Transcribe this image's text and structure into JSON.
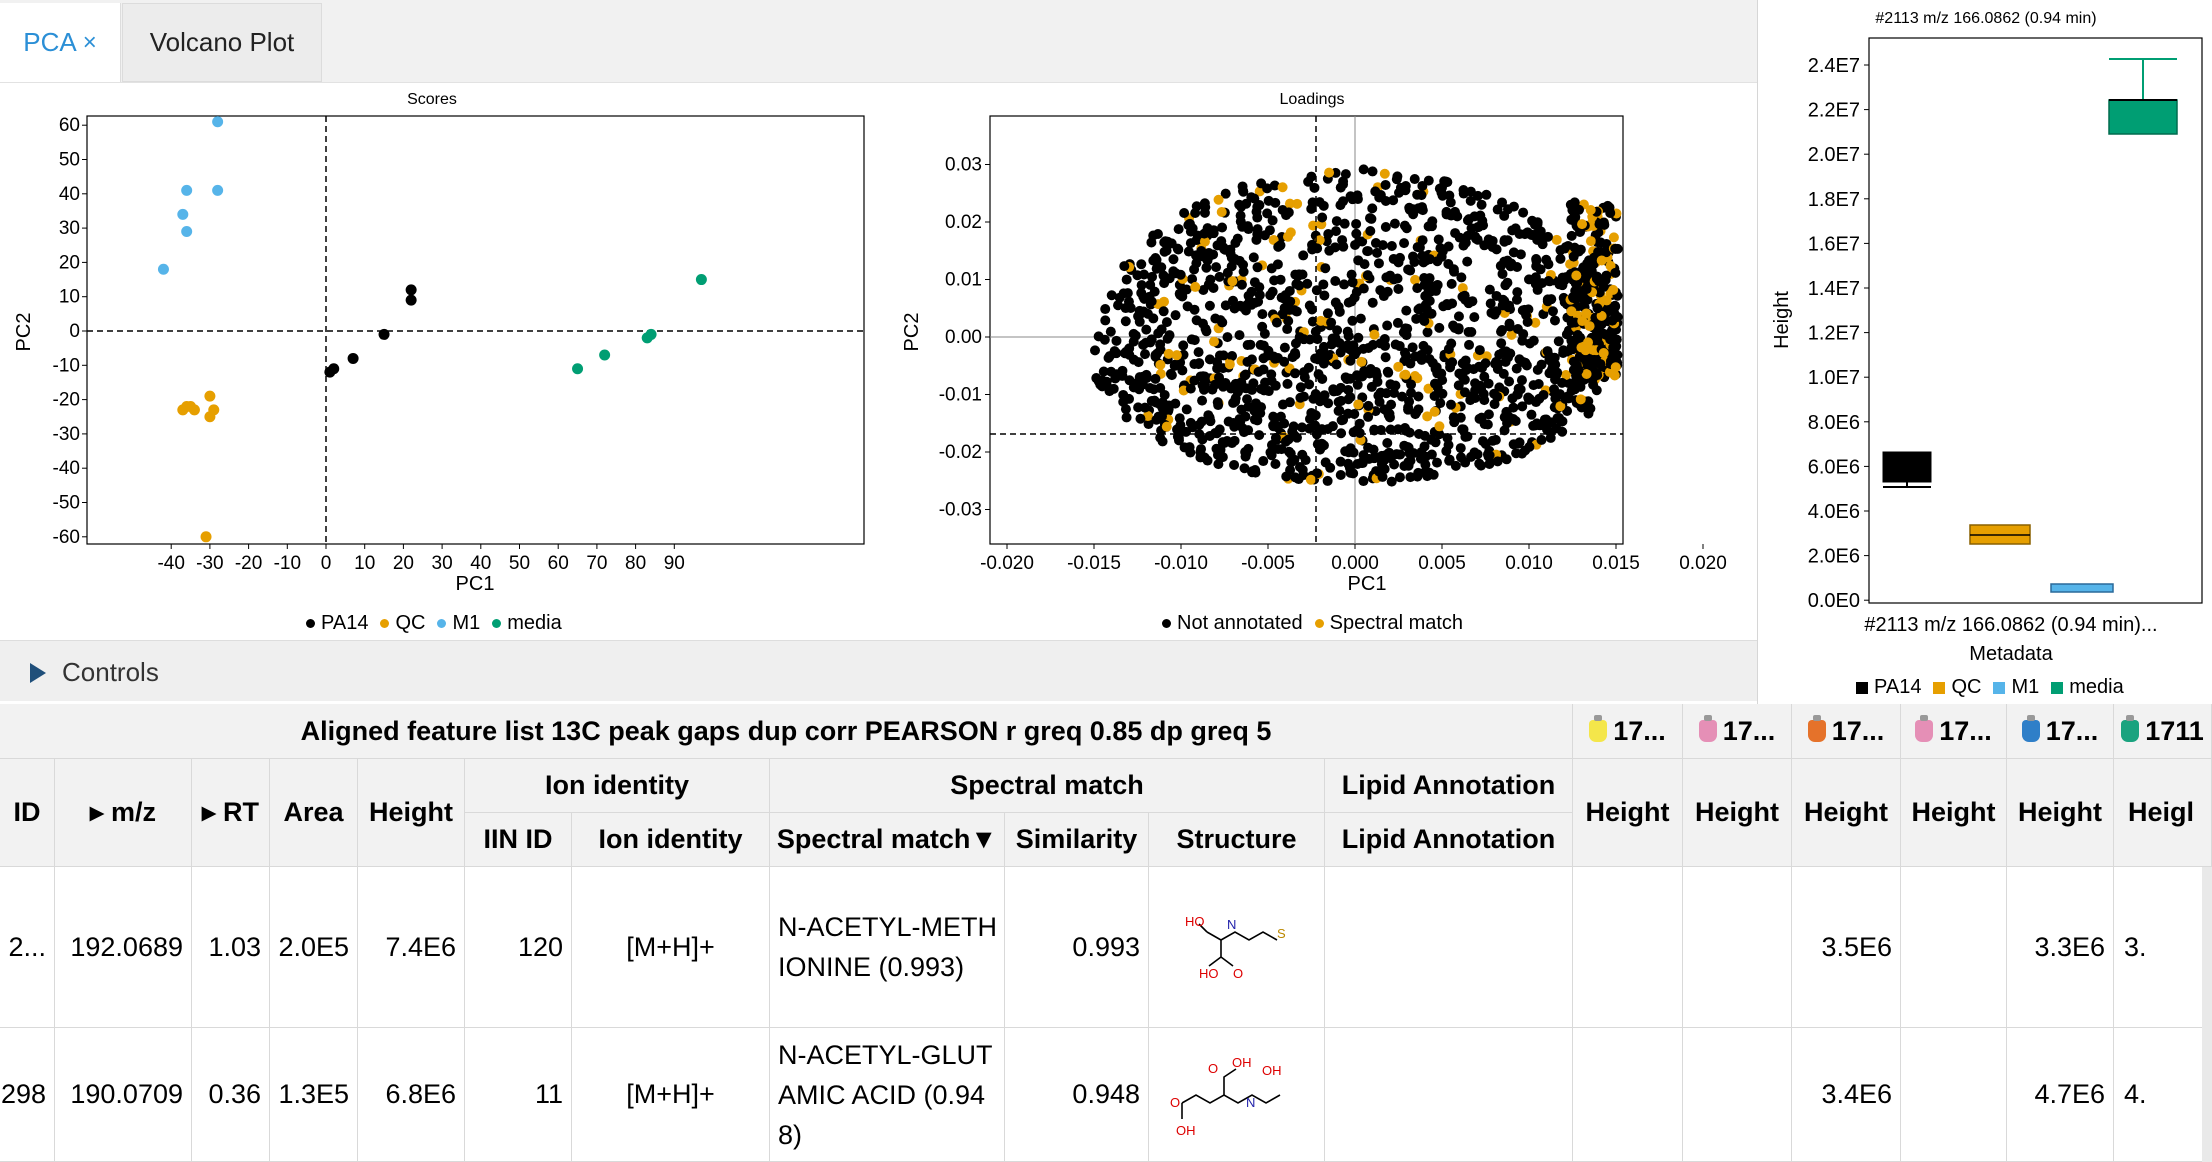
{
  "tabs": [
    {
      "label": "PCA",
      "close": "×"
    },
    {
      "label": "Volcano Plot"
    }
  ],
  "scores": {
    "title": "Scores",
    "xlabel": "PC1",
    "ylabel": "PC2",
    "xticks": [
      "-40",
      "-30",
      "-20",
      "-10",
      "0",
      "10",
      "20",
      "30",
      "40",
      "50",
      "60",
      "70",
      "80",
      "90"
    ],
    "yticks": [
      "60",
      "50",
      "40",
      "30",
      "20",
      "10",
      "0",
      "-10",
      "-20",
      "-30",
      "-40",
      "-50",
      "-60"
    ],
    "legend": [
      "PA14",
      "QC",
      "M1",
      "media"
    ]
  },
  "loadings": {
    "title": "Loadings",
    "xlabel": "PC1",
    "ylabel": "PC2",
    "xticks": [
      "-0.020",
      "-0.015",
      "-0.010",
      "-0.005",
      "0.000",
      "0.005",
      "0.010",
      "0.015",
      "0.020"
    ],
    "yticks": [
      "0.03",
      "0.02",
      "0.01",
      "0.00",
      "-0.01",
      "-0.02",
      "-0.03"
    ],
    "legend": [
      "Not annotated",
      "Spectral match"
    ]
  },
  "boxplot": {
    "title": "#2113 m/z 166.0862 (0.94 min)",
    "ylabel": "Height",
    "xlabel": "Metadata",
    "xtick": "#2113 m/z 166.0862 (0.94 min)...",
    "yticks": [
      "2.4E7",
      "2.2E7",
      "2.0E7",
      "1.8E7",
      "1.6E7",
      "1.4E7",
      "1.2E7",
      "1.0E7",
      "8.0E6",
      "6.0E6",
      "4.0E6",
      "2.0E6",
      "0.0E0"
    ],
    "legend": [
      "PA14",
      "QC",
      "M1",
      "media"
    ]
  },
  "controls": {
    "label": "Controls"
  },
  "table": {
    "title": "Aligned feature list 13C peak gaps dup corr PEARSON r greq 0.85 dp greq 5",
    "samples": [
      "17...",
      "17...",
      "17...",
      "17...",
      "17...",
      "1711"
    ],
    "headers": {
      "id": "ID",
      "mz": "▸ m/z",
      "rt": "▸ RT",
      "area": "Area",
      "height": "Height",
      "ion_identity_group": "Ion identity",
      "iin_id": "IIN ID",
      "ion_identity": "Ion identity",
      "spectral_group": "Spectral match",
      "spectral_match": "Spectral match▼",
      "similarity": "Similarity",
      "structure": "Structure",
      "lipid_group": "Lipid Annotation",
      "lipid": "Lipid Annotation",
      "sample_height": "Height",
      "sample_height_cut": "Heigl"
    },
    "rows": [
      {
        "id": "2...",
        "mz": "192.0689",
        "rt": "1.03",
        "area": "2.0E5",
        "height": "7.4E6",
        "iin_id": "120",
        "ion": "[M+H]+",
        "match": "N-ACETYL-METHIONINE (0.993)",
        "similarity": "0.993",
        "s3": "3.5E6",
        "s5": "3.3E6",
        "s6": "3."
      },
      {
        "id": "298",
        "mz": "190.0709",
        "rt": "0.36",
        "area": "1.3E5",
        "height": "6.8E6",
        "iin_id": "11",
        "ion": "[M+H]+",
        "match": "N-ACETYL-GLUTAMIC ACID (0.948)",
        "similarity": "0.948",
        "s3": "3.4E6",
        "s5": "4.7E6",
        "s6": "4."
      }
    ]
  },
  "colors": {
    "PA14": "#000000",
    "QC": "#e69f00",
    "M1": "#56b4e9",
    "media": "#009e73",
    "accent": "#2b8fd6"
  }
}
